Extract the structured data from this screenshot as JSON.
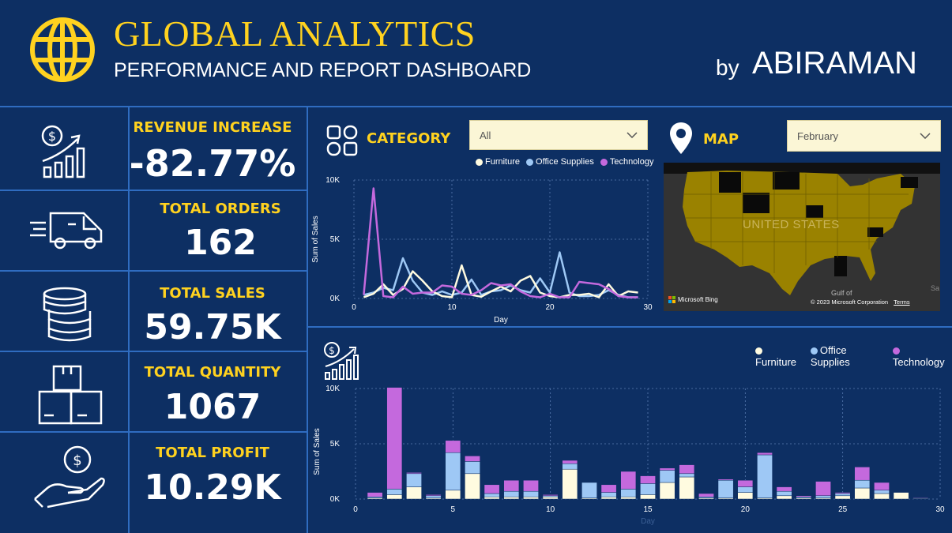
{
  "header": {
    "title": "GLOBAL ANALYTICS",
    "subtitle": "PERFORMANCE AND REPORT DASHBOARD",
    "by_label": "by",
    "author": "ABIRAMAN"
  },
  "kpis": [
    {
      "label": "REVENUE INCREASE",
      "value": "-82.77%",
      "icon": "revenue-growth-icon"
    },
    {
      "label": "TOTAL ORDERS",
      "value": "162",
      "icon": "delivery-van-icon"
    },
    {
      "label": "TOTAL SALES",
      "value": "59.75K",
      "icon": "coin-stack-icon"
    },
    {
      "label": "TOTAL QUANTITY",
      "value": "1067",
      "icon": "boxes-icon"
    },
    {
      "label": "TOTAL PROFIT",
      "value": "10.29K",
      "icon": "hand-money-icon"
    }
  ],
  "category": {
    "label": "CATEGORY",
    "dropdown_value": "All",
    "icon": "category-grid-icon"
  },
  "map": {
    "label": "MAP",
    "dropdown_value": "February",
    "icon": "map-pin-icon",
    "country_label": "UNITED STATES",
    "gulf_label": "Gulf of",
    "sa_label": "Sa",
    "bing_label": "Microsoft Bing",
    "copyright": "© 2023 Microsoft Corporation",
    "terms": "Terms"
  },
  "colors": {
    "furniture": "#fffbe0",
    "office_supplies": "#9ec8f5",
    "technology": "#c469dd",
    "background": "#0d2f63",
    "accent": "#ffd21f"
  },
  "chart_data": [
    {
      "type": "line",
      "xlabel": "Day",
      "ylabel": "Sum of Sales",
      "xlim": [
        0,
        30
      ],
      "ylim": [
        0,
        10000
      ],
      "xticks": [
        "0",
        "10",
        "20",
        "30"
      ],
      "yticks": [
        "0K",
        "5K",
        "10K"
      ],
      "legend": [
        "Furniture",
        "Office Supplies",
        "Technology"
      ],
      "x": [
        1,
        2,
        3,
        4,
        5,
        6,
        7,
        8,
        9,
        10,
        11,
        12,
        13,
        14,
        15,
        16,
        17,
        18,
        19,
        20,
        21,
        22,
        23,
        24,
        25,
        26,
        27,
        28,
        29
      ],
      "series": [
        {
          "name": "Furniture",
          "values": [
            100,
            400,
            1200,
            300,
            800,
            2300,
            1500,
            600,
            200,
            100,
            2800,
            300,
            150,
            600,
            1000,
            600,
            1500,
            1900,
            500,
            200,
            100,
            300,
            300,
            400,
            100,
            1200,
            200,
            600,
            500
          ]
        },
        {
          "name": "Office Supplies",
          "values": [
            300,
            500,
            900,
            700,
            3400,
            1500,
            500,
            300,
            600,
            300,
            500,
            1600,
            300,
            600,
            700,
            1100,
            700,
            500,
            1700,
            500,
            3900,
            500,
            200,
            200,
            300,
            700,
            300,
            100,
            100
          ]
        },
        {
          "name": "Technology",
          "values": [
            300,
            9300,
            200,
            100,
            1000,
            400,
            500,
            500,
            1100,
            1000,
            400,
            300,
            700,
            1300,
            1100,
            1200,
            600,
            200,
            100,
            400,
            100,
            100,
            1400,
            1300,
            1200,
            800,
            200,
            100,
            100
          ]
        }
      ]
    },
    {
      "type": "bar",
      "stacked": true,
      "xlabel": "Day",
      "ylabel": "Sum of Sales",
      "xlim": [
        0,
        30
      ],
      "ylim": [
        0,
        10000
      ],
      "xticks": [
        "0",
        "5",
        "10",
        "15",
        "20",
        "25",
        "30"
      ],
      "yticks": [
        "0K",
        "5K",
        "10K"
      ],
      "legend": [
        "Furniture",
        "Office Supplies",
        "Technology"
      ],
      "categories": [
        1,
        2,
        3,
        4,
        5,
        6,
        7,
        8,
        9,
        10,
        11,
        12,
        13,
        14,
        15,
        16,
        17,
        18,
        19,
        20,
        21,
        22,
        23,
        24,
        25,
        26,
        27,
        28,
        29
      ],
      "series": [
        {
          "name": "Furniture",
          "values": [
            100,
            400,
            1100,
            100,
            800,
            2300,
            200,
            200,
            200,
            200,
            2700,
            100,
            200,
            200,
            400,
            1500,
            2000,
            100,
            100,
            600,
            100,
            300,
            100,
            100,
            300,
            1000,
            500,
            600,
            50
          ]
        },
        {
          "name": "Office Supplies",
          "values": [
            100,
            500,
            1200,
            200,
            3400,
            1100,
            300,
            500,
            500,
            100,
            500,
            1400,
            400,
            700,
            1000,
            1100,
            300,
            100,
            1600,
            500,
            3900,
            400,
            100,
            200,
            200,
            700,
            300,
            0,
            50
          ]
        },
        {
          "name": "Technology",
          "values": [
            400,
            9200,
            100,
            100,
            1100,
            500,
            800,
            1000,
            1000,
            100,
            300,
            0,
            700,
            1600,
            700,
            200,
            800,
            300,
            100,
            600,
            200,
            400,
            100,
            1300,
            100,
            1200,
            700,
            0,
            50
          ]
        }
      ]
    }
  ]
}
